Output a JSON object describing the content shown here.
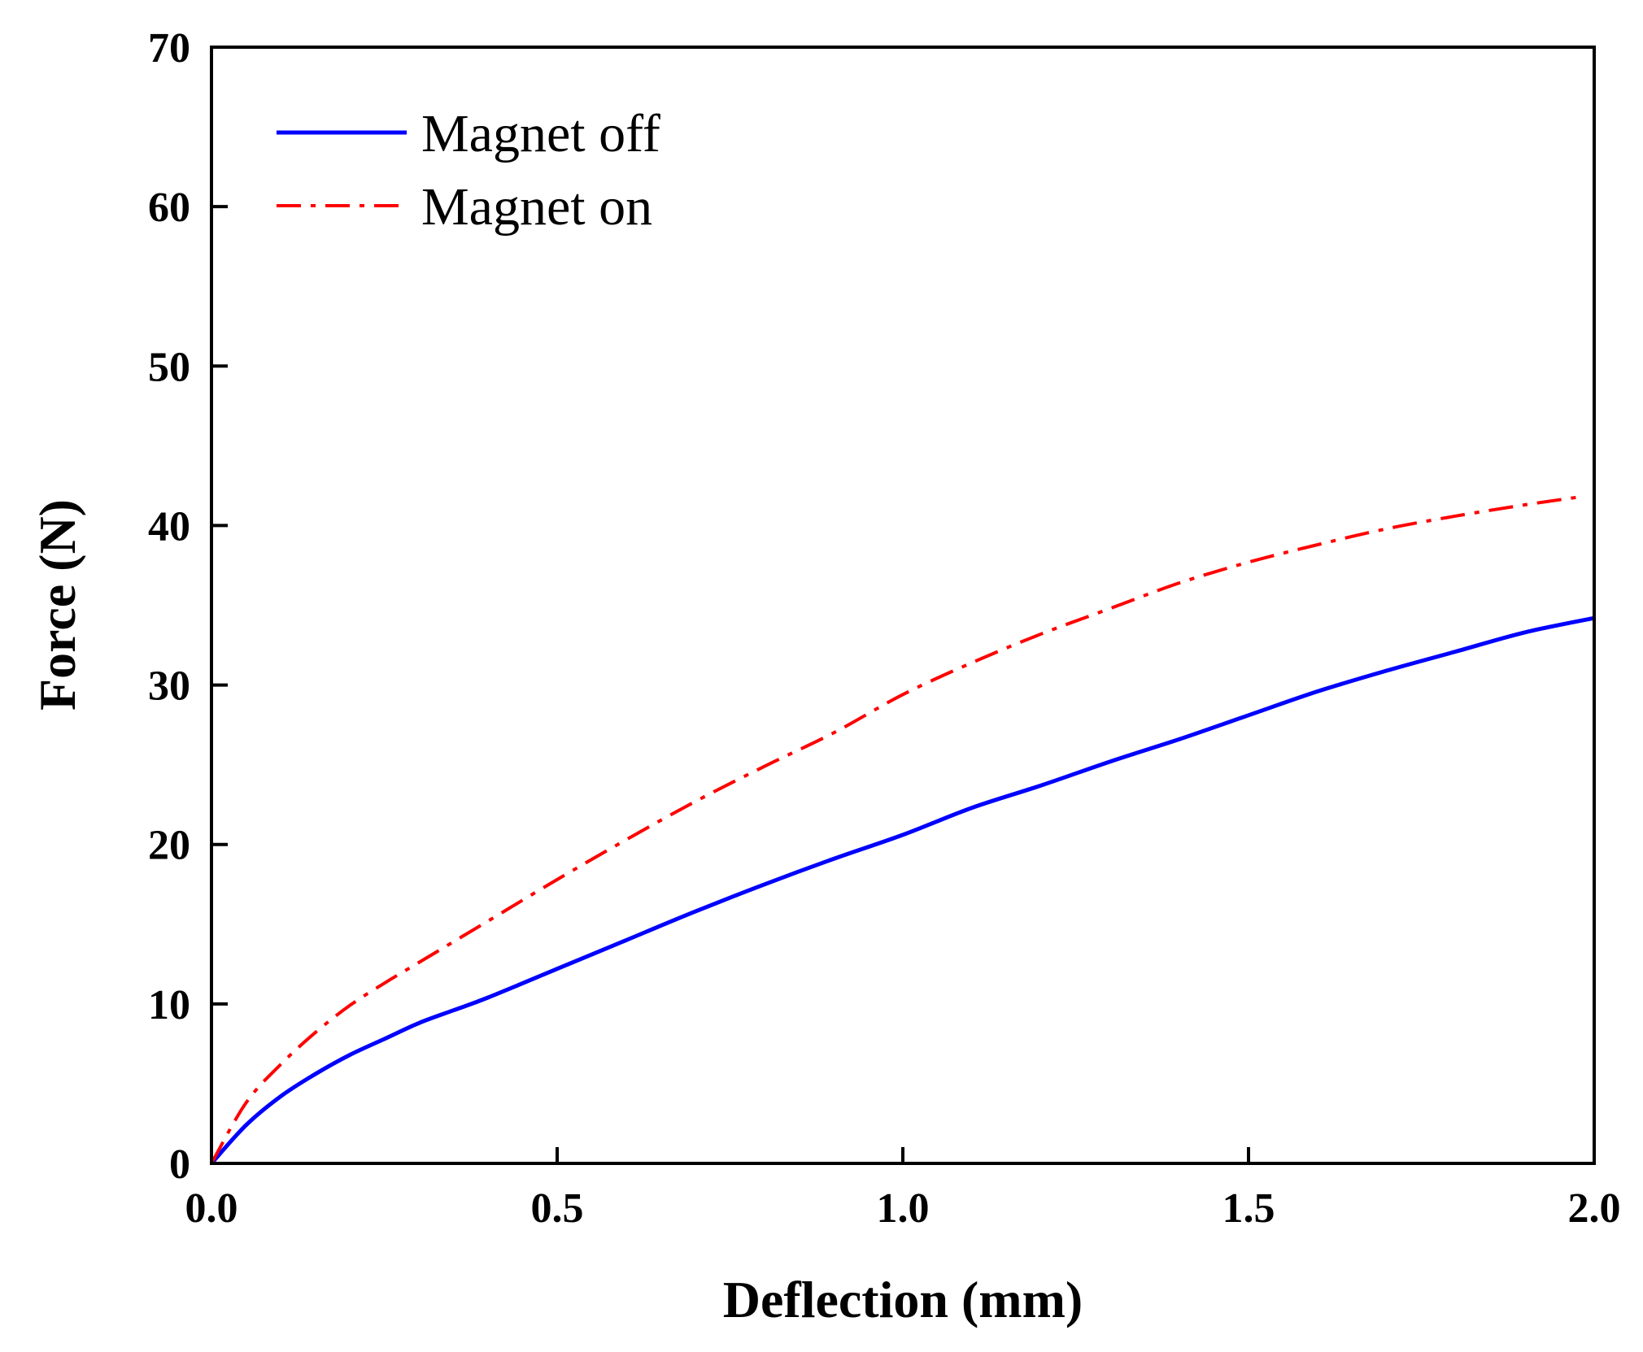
{
  "chart_data": {
    "type": "line",
    "title": "",
    "xlabel": "Deflection (mm)",
    "ylabel": "Force (N)",
    "xlim": [
      0,
      2.0
    ],
    "ylim": [
      0,
      70
    ],
    "xticks": [
      0.0,
      0.5,
      1.0,
      1.5,
      2.0
    ],
    "xtick_labels": [
      "0.0",
      "0.5",
      "1.0",
      "1.5",
      "2.0"
    ],
    "yticks": [
      0,
      10,
      20,
      30,
      40,
      50,
      60,
      70
    ],
    "ytick_labels": [
      "0",
      "10",
      "20",
      "30",
      "40",
      "50",
      "60",
      "70"
    ],
    "grid": false,
    "legend": "top-left",
    "series": [
      {
        "name": "Magnet off",
        "color": "#0000ff",
        "style": "solid",
        "x": [
          0,
          0.05,
          0.1,
          0.15,
          0.2,
          0.25,
          0.3,
          0.35,
          0.4,
          0.5,
          0.6,
          0.7,
          0.8,
          0.9,
          1.0,
          1.1,
          1.2,
          1.3,
          1.4,
          1.5,
          1.6,
          1.7,
          1.8,
          1.9,
          2.0
        ],
        "y": [
          0,
          2.4,
          4.2,
          5.6,
          6.8,
          7.8,
          8.8,
          9.6,
          10.4,
          12.2,
          14.0,
          15.8,
          17.5,
          19.1,
          20.6,
          22.3,
          23.7,
          25.2,
          26.6,
          28.1,
          29.6,
          30.9,
          32.1,
          33.3,
          34.2
        ]
      },
      {
        "name": "Magnet on",
        "color": "#ff0000",
        "style": "dashdot",
        "x": [
          0,
          0.05,
          0.1,
          0.15,
          0.2,
          0.25,
          0.3,
          0.4,
          0.5,
          0.6,
          0.7,
          0.8,
          0.9,
          1.0,
          1.1,
          1.2,
          1.3,
          1.4,
          1.5,
          1.6,
          1.7,
          1.8,
          1.9,
          1.98
        ],
        "y": [
          0,
          3.8,
          6.2,
          8.2,
          9.9,
          11.3,
          12.6,
          15.2,
          17.8,
          20.3,
          22.7,
          24.9,
          27.0,
          29.4,
          31.4,
          33.2,
          34.8,
          36.4,
          37.7,
          38.8,
          39.8,
          40.6,
          41.3,
          41.8
        ]
      }
    ]
  }
}
